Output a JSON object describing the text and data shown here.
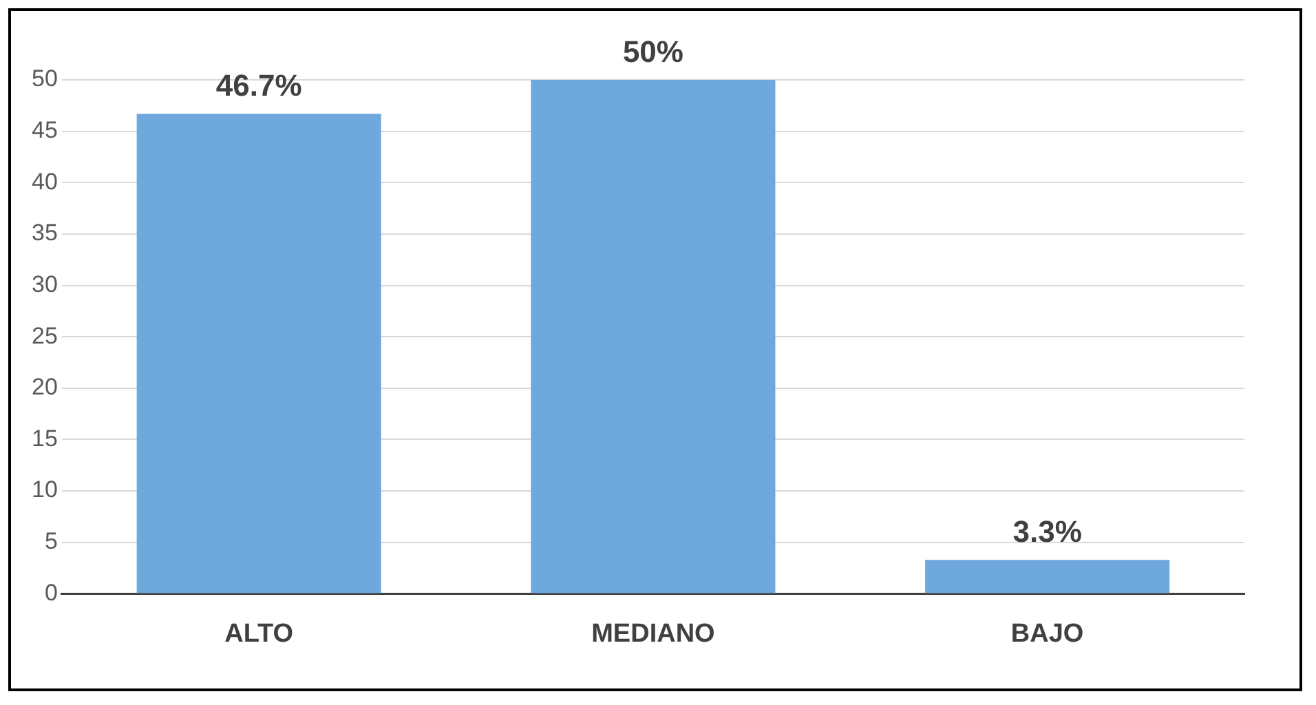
{
  "chart_data": {
    "type": "bar",
    "categories": [
      "ALTO",
      "MEDIANO",
      "BAJO"
    ],
    "values": [
      46.7,
      50,
      3.3
    ],
    "color": "#6fa8dc",
    "value_labels": [
      "46.7%",
      "50%",
      "3.3%"
    ],
    "ylim": [
      0,
      50
    ],
    "yticks": [
      0,
      5,
      10,
      15,
      20,
      25,
      30,
      35,
      40,
      45,
      50
    ],
    "grid": "y",
    "legend": false
  }
}
